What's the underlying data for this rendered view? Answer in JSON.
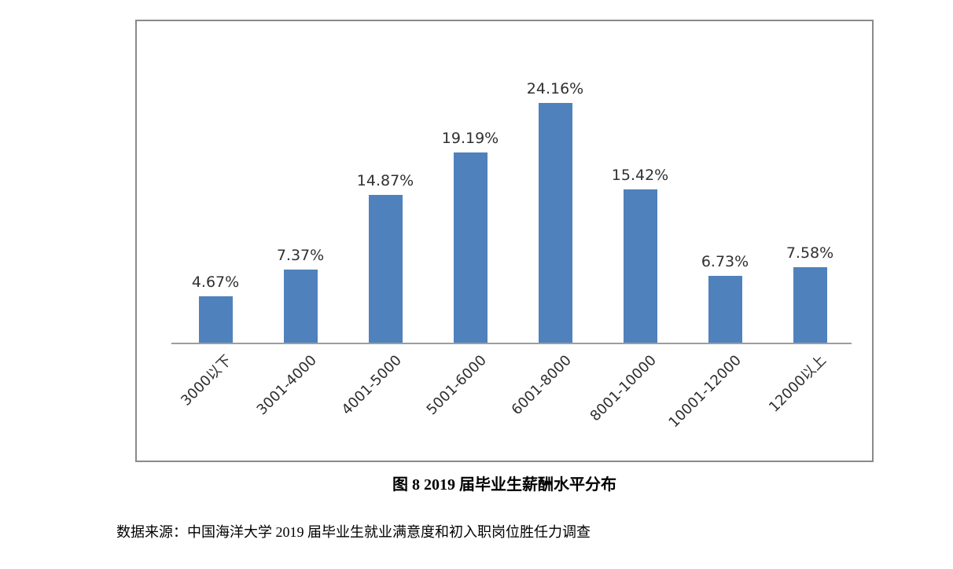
{
  "figure": {
    "caption": "图 8  2019 届毕业生薪酬水平分布",
    "source": "数据来源：中国海洋大学 2019 届毕业生就业满意度和初入职岗位胜任力调查"
  },
  "colors": {
    "bar": "#4f81bd",
    "axis_line": "#9d9d9d",
    "chart_border": "#8a8a8a",
    "value_label_text": "#303030"
  },
  "chart_data": {
    "type": "bar",
    "title": "图 8  2019 届毕业生薪酬水平分布",
    "categories": [
      "3000以下",
      "3001-4000",
      "4001-5000",
      "5001-6000",
      "6001-8000",
      "8001-10000",
      "10001-12000",
      "12000以上"
    ],
    "values": [
      4.67,
      7.37,
      14.87,
      19.19,
      24.16,
      15.42,
      6.73,
      7.58
    ],
    "value_labels": [
      "4.67%",
      "7.37%",
      "14.87%",
      "19.19%",
      "24.16%",
      "15.42%",
      "6.73%",
      "7.58%"
    ],
    "xlabel": "",
    "ylabel": "",
    "ylim": [
      0,
      26
    ],
    "grid": false,
    "legend": false,
    "bar_color": "#4f81bd",
    "x_tick_rotation": 45,
    "y_axis_visible": false
  }
}
